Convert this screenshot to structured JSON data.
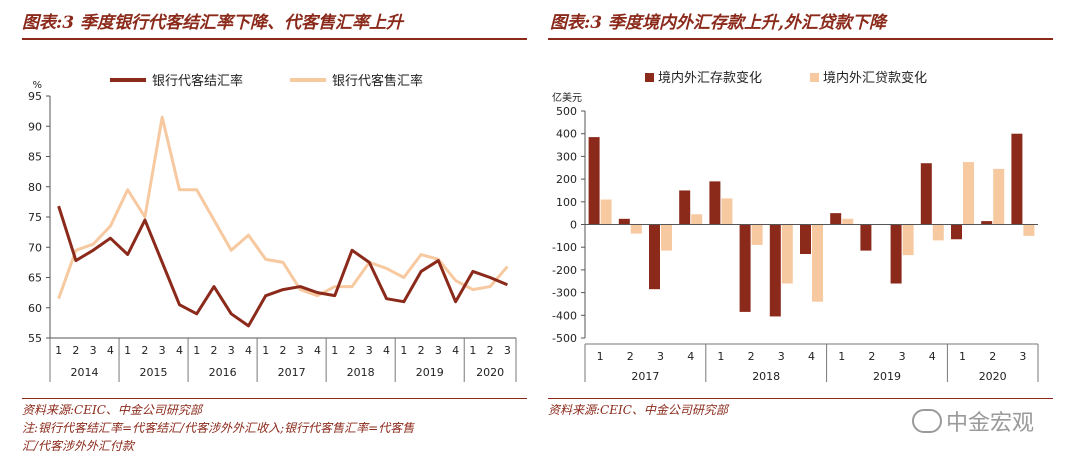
{
  "left": {
    "title": "图表:3 季度银行代客结汇率下降、代客售汇率上升",
    "source": "资料来源:CEIC、中金公司研究部",
    "note_line1": "注:银行代客结汇率=代客结汇/代客涉外外汇收入;银行代客售汇率=代客售",
    "note_line2": "汇/代客涉外外汇付款"
  },
  "right": {
    "title": "图表:3 季度境内外汇存款上升,外汇贷款下降",
    "source": "资料来源:CEIC、中金公司研究部"
  },
  "watermark": "中金宏观",
  "colors": {
    "accent": "#8b2a1b",
    "series_dark": "#8b2a1b",
    "series_light": "#f7c9a0"
  },
  "chart_data": [
    {
      "type": "line",
      "unit": "%",
      "ylim": [
        55,
        95
      ],
      "yticks": [
        55,
        60,
        65,
        70,
        75,
        80,
        85,
        90,
        95
      ],
      "years": [
        {
          "label": "2014",
          "quarters": [
            "1",
            "2",
            "3",
            "4"
          ]
        },
        {
          "label": "2015",
          "quarters": [
            "1",
            "2",
            "3",
            "4"
          ]
        },
        {
          "label": "2016",
          "quarters": [
            "1",
            "2",
            "3",
            "4"
          ]
        },
        {
          "label": "2017",
          "quarters": [
            "1",
            "2",
            "3",
            "4"
          ]
        },
        {
          "label": "2018",
          "quarters": [
            "1",
            "2",
            "3",
            "4"
          ]
        },
        {
          "label": "2019",
          "quarters": [
            "1",
            "2",
            "3",
            "4"
          ]
        },
        {
          "label": "2020",
          "quarters": [
            "1",
            "2",
            "3"
          ]
        }
      ],
      "series": [
        {
          "name": "银行代客结汇率",
          "values": [
            76.8,
            67.8,
            69.5,
            71.5,
            68.8,
            74.5,
            67.5,
            60.5,
            59,
            63.5,
            59,
            57,
            62,
            63,
            63.5,
            62.5,
            62,
            69.5,
            67.5,
            61.5,
            61,
            66,
            67.8,
            61,
            66,
            65,
            63.8
          ]
        },
        {
          "name": "银行代客售汇率",
          "values": [
            61.5,
            69.5,
            70.5,
            73.5,
            79.5,
            75,
            91.5,
            79.5,
            79.5,
            74.5,
            69.5,
            72,
            68,
            67.5,
            63,
            62,
            63.5,
            63.5,
            67.5,
            66.5,
            65,
            68.8,
            68,
            64.5,
            63,
            63.5,
            66.8
          ]
        }
      ]
    },
    {
      "type": "bar",
      "unit": "亿美元",
      "ylim": [
        -500,
        500
      ],
      "yticks": [
        -500,
        -400,
        -300,
        -200,
        -100,
        0,
        100,
        200,
        300,
        400,
        500
      ],
      "years": [
        {
          "label": "2017",
          "quarters": [
            "1",
            "2",
            "3",
            "4"
          ]
        },
        {
          "label": "2018",
          "quarters": [
            "1",
            "2",
            "3",
            "4"
          ]
        },
        {
          "label": "2019",
          "quarters": [
            "1",
            "2",
            "3",
            "4"
          ]
        },
        {
          "label": "2020",
          "quarters": [
            "1",
            "2",
            "3"
          ]
        }
      ],
      "series": [
        {
          "name": "境内外汇存款变化",
          "values": [
            385,
            25,
            -285,
            150,
            190,
            -385,
            -405,
            -130,
            50,
            -115,
            -260,
            270,
            -65,
            15,
            400
          ]
        },
        {
          "name": "境内外汇贷款变化",
          "values": [
            110,
            -40,
            -115,
            45,
            115,
            -90,
            -260,
            -340,
            25,
            0,
            -135,
            -70,
            275,
            245,
            -50
          ]
        }
      ]
    }
  ]
}
